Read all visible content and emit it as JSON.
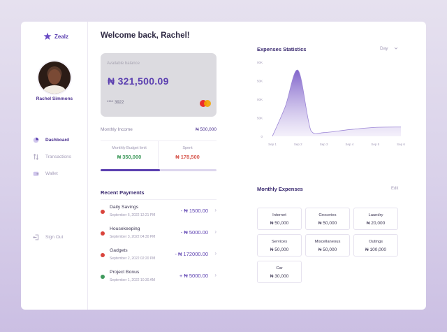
{
  "brand": {
    "name": "Zealz"
  },
  "user": {
    "name": "Rachel Simmons"
  },
  "nav": [
    {
      "label": "Dashboard",
      "icon": "pie-chart-icon",
      "active": true
    },
    {
      "label": "Transactions",
      "icon": "transfer-arrows-icon",
      "active": false
    },
    {
      "label": "Wallet",
      "icon": "wallet-icon",
      "active": false
    }
  ],
  "signout": {
    "label": "Sign Out",
    "icon": "sign-out-icon"
  },
  "welcome": "Welcome back, Rachel!",
  "card": {
    "label": "Available balance",
    "balance": "₦ 321,500.09",
    "number": "**** 3922",
    "network_icon": "mastercard-icon"
  },
  "income": {
    "label": "Monthly Income",
    "value": "₦ 500,000",
    "budget_label": "Monthly Budget limit",
    "budget_value": "₦ 350,000",
    "spent_label": "Spent",
    "spent_value": "₦ 178,500",
    "spent_fraction": 0.51
  },
  "payments": {
    "title": "Recent Payments",
    "items": [
      {
        "name": "Daily Savings",
        "date": "September 6, 2022  12:21 PM",
        "amount": "- ₦ 1500.00",
        "status_color": "#d9443c"
      },
      {
        "name": "Housekeeping",
        "date": "September 3, 2022  04:30 PM",
        "amount": "- ₦ 5000.00",
        "status_color": "#d9443c"
      },
      {
        "name": "Gadgets",
        "date": "September 2, 2022  02:20 PM",
        "amount": "- ₦ 172000.00",
        "status_color": "#d9443c"
      },
      {
        "name": "Project Bonus",
        "date": "September 1, 2022  10:30 AM",
        "amount": "+ ₦ 5000.00",
        "status_color": "#3f9a5c"
      }
    ]
  },
  "stats": {
    "title": "Expenses Statistics",
    "period": "Day"
  },
  "chart_data": {
    "type": "area",
    "title": "Expenses Statistics",
    "categories": [
      "Sep 1",
      "Sep 2",
      "Sep 3",
      "Sep 4",
      "Sep 5",
      "Sep 6"
    ],
    "x": [
      1,
      1.5,
      2,
      2.5,
      3,
      4,
      5,
      6
    ],
    "values": [
      0,
      80,
      178,
      15,
      10,
      18,
      24,
      25
    ],
    "ylim": [
      0,
      200
    ],
    "yticks": [
      "0",
      "50K",
      "100K",
      "150K",
      "200K"
    ],
    "grid": false
  },
  "expenses": {
    "title": "Monthly Expenses",
    "edit_label": "Edit",
    "items": [
      {
        "name": "Internet",
        "value": "₦ 50,000"
      },
      {
        "name": "Groceries",
        "value": "₦ 50,000"
      },
      {
        "name": "Laundry",
        "value": "₦ 20,000"
      },
      {
        "name": "Services",
        "value": "₦ 50,000"
      },
      {
        "name": "Miscellaneous",
        "value": "₦ 50,000"
      },
      {
        "name": "Outings",
        "value": "₦ 100,000"
      },
      {
        "name": "Car",
        "value": "₦ 30,000"
      }
    ]
  },
  "colors": {
    "accent": "#5b3fb0",
    "accent_light": "#ddd6ee",
    "positive": "#3f9a5c",
    "negative": "#d85b52"
  }
}
